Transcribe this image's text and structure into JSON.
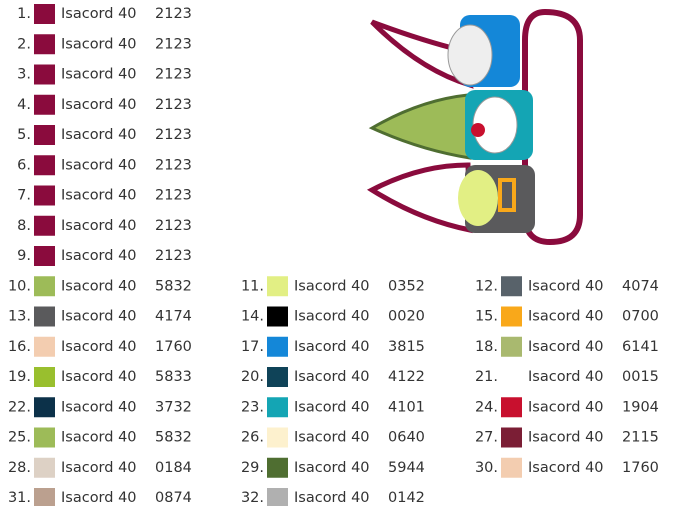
{
  "threads": [
    {
      "number": "1.",
      "color": "#8a0b3d",
      "brand": "Isacord 40",
      "code": "2123"
    },
    {
      "number": "2.",
      "color": "#8a0b3d",
      "brand": "Isacord 40",
      "code": "2123"
    },
    {
      "number": "3.",
      "color": "#8a0b3d",
      "brand": "Isacord 40",
      "code": "2123"
    },
    {
      "number": "4.",
      "color": "#8a0b3d",
      "brand": "Isacord 40",
      "code": "2123"
    },
    {
      "number": "5.",
      "color": "#8a0b3d",
      "brand": "Isacord 40",
      "code": "2123"
    },
    {
      "number": "6.",
      "color": "#8a0b3d",
      "brand": "Isacord 40",
      "code": "2123"
    },
    {
      "number": "7.",
      "color": "#8a0b3d",
      "brand": "Isacord 40",
      "code": "2123"
    },
    {
      "number": "8.",
      "color": "#8a0b3d",
      "brand": "Isacord 40",
      "code": "2123"
    },
    {
      "number": "9.",
      "color": "#8a0b3d",
      "brand": "Isacord 40",
      "code": "2123"
    },
    {
      "number": "10.",
      "color": "#9dbb58",
      "brand": "Isacord 40",
      "code": "5832"
    },
    {
      "number": "11.",
      "color": "#e2ef84",
      "brand": "Isacord 40",
      "code": "0352"
    },
    {
      "number": "12.",
      "color": "#58626a",
      "brand": "Isacord 40",
      "code": "4074"
    },
    {
      "number": "13.",
      "color": "#5a5a5c",
      "brand": "Isacord 40",
      "code": "4174"
    },
    {
      "number": "14.",
      "color": "#000000",
      "brand": "Isacord 40",
      "code": "0020"
    },
    {
      "number": "15.",
      "color": "#f9a81a",
      "brand": "Isacord 40",
      "code": "0700"
    },
    {
      "number": "16.",
      "color": "#f3cdb0",
      "brand": "Isacord 40",
      "code": "1760"
    },
    {
      "number": "17.",
      "color": "#1487d8",
      "brand": "Isacord 40",
      "code": "3815"
    },
    {
      "number": "18.",
      "color": "#a9b96f",
      "brand": "Isacord 40",
      "code": "6141"
    },
    {
      "number": "19.",
      "color": "#99bf2e",
      "brand": "Isacord 40",
      "code": "5833"
    },
    {
      "number": "20.",
      "color": "#0f4358",
      "brand": "Isacord 40",
      "code": "4122"
    },
    {
      "number": "21.",
      "color": "#ffffff",
      "brand": "Isacord 40",
      "code": "0015"
    },
    {
      "number": "22.",
      "color": "#0c3149",
      "brand": "Isacord 40",
      "code": "3732"
    },
    {
      "number": "23.",
      "color": "#14a5b4",
      "brand": "Isacord 40",
      "code": "4101"
    },
    {
      "number": "24.",
      "color": "#c8102e",
      "brand": "Isacord 40",
      "code": "1904"
    },
    {
      "number": "25.",
      "color": "#9dbb58",
      "brand": "Isacord 40",
      "code": "5832"
    },
    {
      "number": "26.",
      "color": "#fdf1ce",
      "brand": "Isacord 40",
      "code": "0640"
    },
    {
      "number": "27.",
      "color": "#7b1e35",
      "brand": "Isacord 40",
      "code": "2115"
    },
    {
      "number": "28.",
      "color": "#ddd1c5",
      "brand": "Isacord 40",
      "code": "0184"
    },
    {
      "number": "29.",
      "color": "#4f6e31",
      "brand": "Isacord 40",
      "code": "5944"
    },
    {
      "number": "30.",
      "color": "#f3cdb0",
      "brand": "Isacord 40",
      "code": "1760"
    },
    {
      "number": "31.",
      "color": "#bba08f",
      "brand": "Isacord 40",
      "code": "0874"
    },
    {
      "number": "32.",
      "color": "#b0b0b0",
      "brand": "Isacord 40",
      "code": "0142"
    }
  ]
}
